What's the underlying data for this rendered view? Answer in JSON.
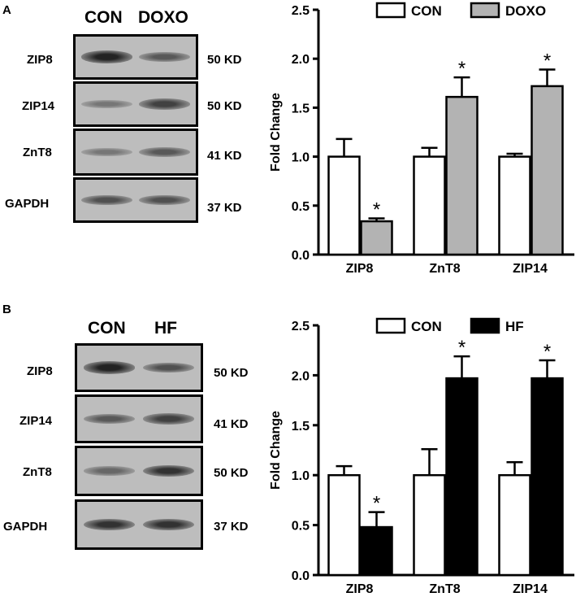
{
  "panel_a": {
    "letter": "A",
    "blot": {
      "headers": [
        "CON",
        "DOXO"
      ],
      "rows": [
        {
          "protein": "ZIP8",
          "size": "50 KD",
          "band_intensity": [
            0.9,
            0.55
          ]
        },
        {
          "protein": "ZIP14",
          "size": "50 KD",
          "band_intensity": [
            0.35,
            0.7
          ]
        },
        {
          "protein": "ZnT8",
          "size": "41 KD",
          "band_intensity": [
            0.35,
            0.55
          ]
        },
        {
          "protein": "GAPDH",
          "size": "37 KD",
          "band_intensity": [
            0.6,
            0.6
          ]
        }
      ]
    }
  },
  "panel_b": {
    "letter": "B",
    "blot": {
      "headers": [
        "CON",
        "HF"
      ],
      "rows": [
        {
          "protein": "ZIP8",
          "size": "50 KD",
          "band_intensity": [
            0.9,
            0.6
          ]
        },
        {
          "protein": "ZIP14",
          "size": "41 KD",
          "band_intensity": [
            0.55,
            0.7
          ]
        },
        {
          "protein": "ZnT8",
          "size": "50 KD",
          "band_intensity": [
            0.45,
            0.8
          ]
        },
        {
          "protein": "GAPDH",
          "size": "37 KD",
          "band_intensity": [
            0.8,
            0.8
          ]
        }
      ]
    }
  },
  "chart_data": [
    {
      "type": "bar",
      "title": "",
      "xlabel": "",
      "ylabel": "Fold Change",
      "ylim": [
        0,
        2.5
      ],
      "yticks": [
        "0.0",
        "0.5",
        "1.0",
        "1.5",
        "2.0",
        "2.5"
      ],
      "categories": [
        "ZIP8",
        "ZnT8",
        "ZIP14"
      ],
      "legend_position": "top",
      "series": [
        {
          "name": "CON",
          "color": "#ffffff",
          "values": [
            1.0,
            1.0,
            1.0
          ],
          "errors": [
            0.18,
            0.09,
            0.03
          ],
          "significant": [
            false,
            false,
            false
          ]
        },
        {
          "name": "DOXO",
          "color": "#b3b3b3",
          "values": [
            0.34,
            1.61,
            1.72
          ],
          "errors": [
            0.03,
            0.2,
            0.17
          ],
          "significant": [
            true,
            true,
            true
          ]
        }
      ],
      "significance_mark": "*"
    },
    {
      "type": "bar",
      "title": "",
      "xlabel": "",
      "ylabel": "Fold Change",
      "ylim": [
        0,
        2.5
      ],
      "yticks": [
        "0.0",
        "0.5",
        "1.0",
        "1.5",
        "2.0",
        "2.5"
      ],
      "categories": [
        "ZIP8",
        "ZnT8",
        "ZIP14"
      ],
      "legend_position": "top",
      "series": [
        {
          "name": "CON",
          "color": "#ffffff",
          "values": [
            1.0,
            1.0,
            1.0
          ],
          "errors": [
            0.09,
            0.26,
            0.13
          ],
          "significant": [
            false,
            false,
            false
          ]
        },
        {
          "name": "HF",
          "color": "#000000",
          "values": [
            0.48,
            1.97,
            1.97
          ],
          "errors": [
            0.15,
            0.22,
            0.18
          ],
          "significant": [
            true,
            true,
            true
          ]
        }
      ],
      "significance_mark": "*"
    }
  ]
}
